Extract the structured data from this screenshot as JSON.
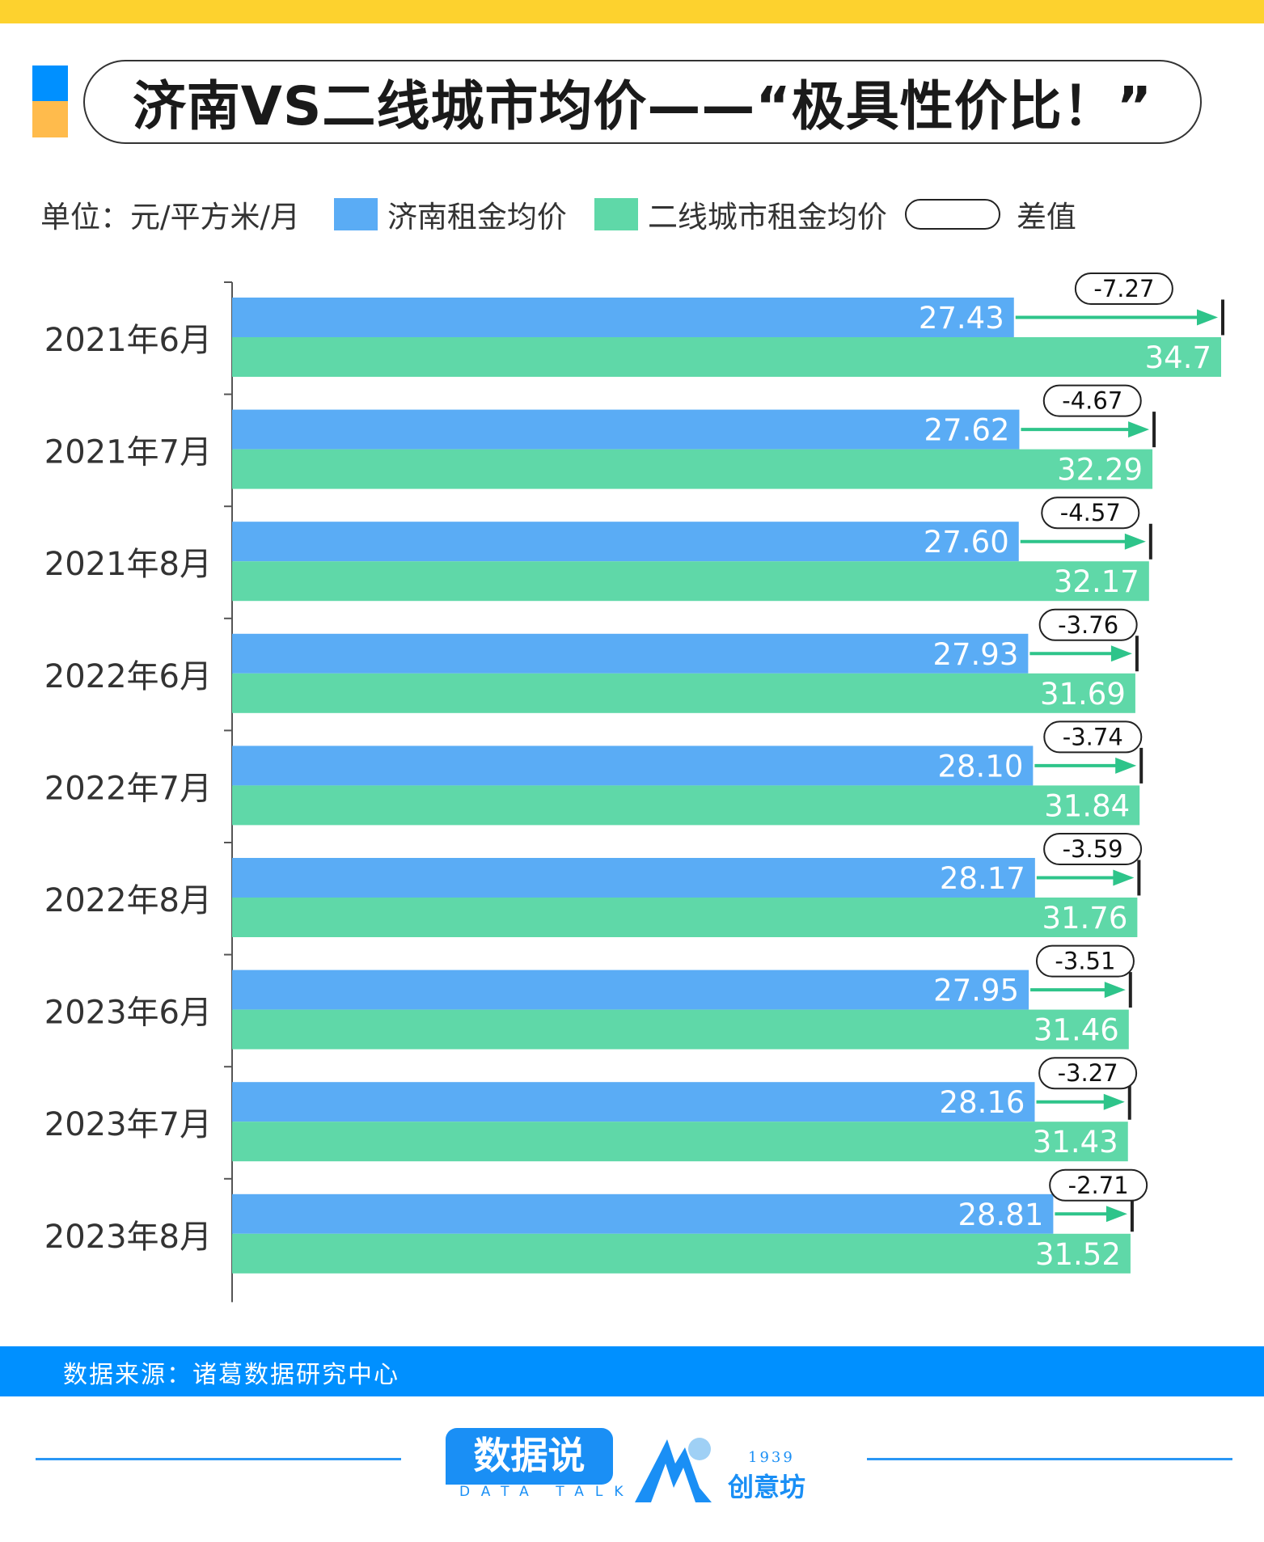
{
  "header": {
    "title": "济南VS二线城市均价——“极具性价比！”"
  },
  "legend": {
    "unit": "单位：元/平方米/月",
    "series1": "济南租金均价",
    "series2": "二线城市租金均价",
    "diff": "差值"
  },
  "colors": {
    "top_bar": "#fdd22e",
    "jinan": "#5aacf5",
    "second_tier": "#5fd8a8",
    "arrow": "#2ec48a",
    "footer": "#0090ff"
  },
  "chart_data": {
    "type": "bar",
    "orientation": "horizontal",
    "categories": [
      "2021年6月",
      "2021年7月",
      "2021年8月",
      "2022年6月",
      "2022年7月",
      "2022年8月",
      "2023年6月",
      "2023年7月",
      "2023年8月"
    ],
    "series": [
      {
        "name": "济南租金均价",
        "values": [
          27.43,
          27.62,
          27.6,
          27.93,
          28.1,
          28.17,
          27.95,
          28.16,
          28.81
        ],
        "labels": [
          "27.43",
          "27.62",
          "27.60",
          "27.93",
          "28.10",
          "28.17",
          "27.95",
          "28.16",
          "28.81"
        ]
      },
      {
        "name": "二线城市租金均价",
        "values": [
          34.7,
          32.29,
          32.17,
          31.69,
          31.84,
          31.76,
          31.46,
          31.43,
          31.52
        ],
        "labels": [
          "34.7",
          "32.29",
          "32.17",
          "31.69",
          "31.84",
          "31.76",
          "31.46",
          "31.43",
          "31.52"
        ]
      }
    ],
    "differences": {
      "name": "差值",
      "labels": [
        "-7.27",
        "-4.67",
        "-4.57",
        "-3.76",
        "-3.74",
        "-3.59",
        "-3.51",
        "-3.27",
        "-2.71"
      ]
    },
    "xlim": [
      0,
      34.7
    ],
    "grid": false
  },
  "footer": {
    "source": "数据来源：诸葛数据研究中心",
    "logo1": "数据说",
    "logo1_sub": "DATA TALK",
    "logo2_year": "1939",
    "logo2_name": "创意坊"
  }
}
